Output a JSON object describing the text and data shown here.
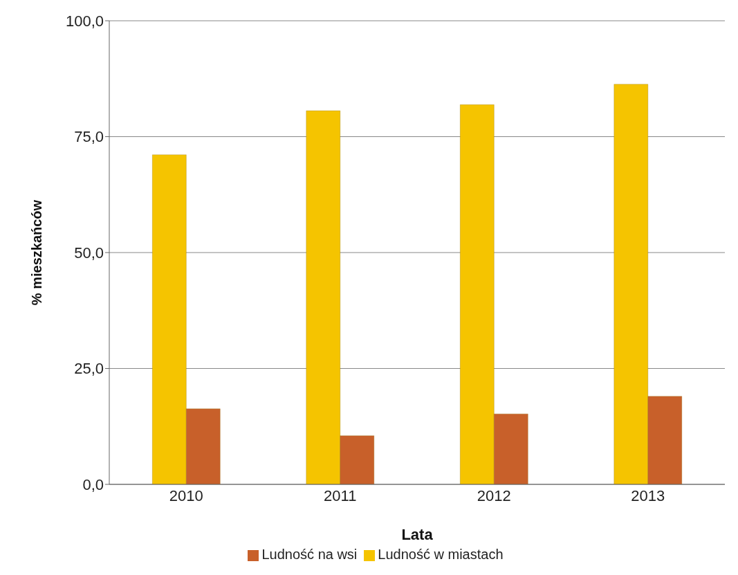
{
  "chart_data": {
    "type": "bar",
    "xlabel": "Lata",
    "ylabel": "% mieszkańców",
    "categories": [
      "2010",
      "2011",
      "2012",
      "2013"
    ],
    "series": [
      {
        "name": "Ludność w miastach",
        "color": "#f5c400",
        "values": [
          71.1,
          80.6,
          81.9,
          86.3
        ]
      },
      {
        "name": "Ludność na wsi",
        "color": "#c8602a",
        "values": [
          16.3,
          10.5,
          15.2,
          19.0
        ]
      }
    ],
    "ylim": [
      0,
      100
    ],
    "yticks": [
      {
        "value": 0,
        "label": "0,0"
      },
      {
        "value": 25,
        "label": "25,0"
      },
      {
        "value": 50,
        "label": "50,0"
      },
      {
        "value": 75,
        "label": "75,0"
      },
      {
        "value": 100,
        "label": "100,0"
      }
    ],
    "grid": "y",
    "legend": "bottom"
  }
}
